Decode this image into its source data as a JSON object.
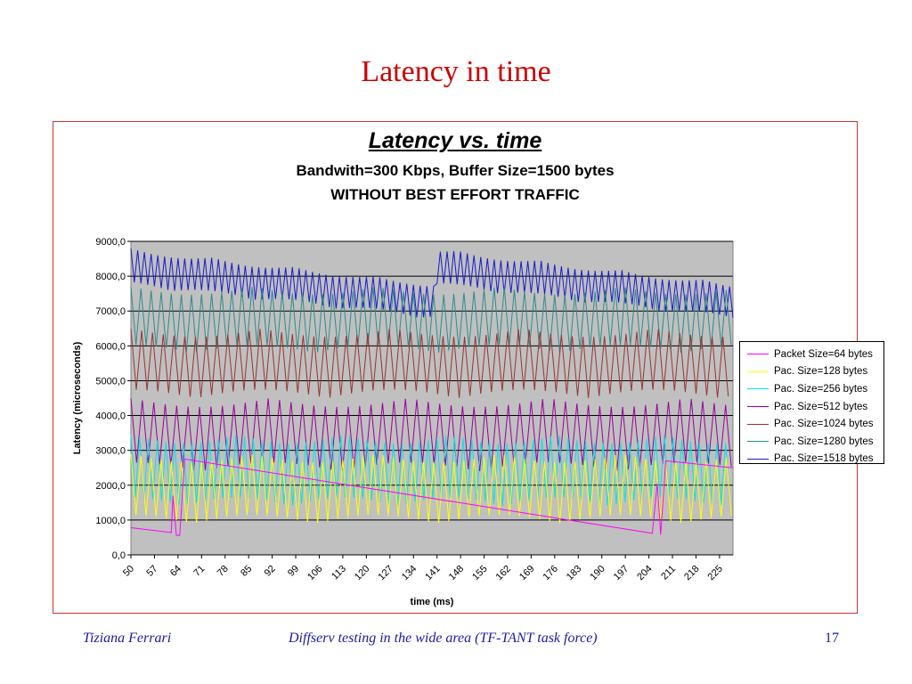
{
  "slide": {
    "title": "Latency in time",
    "footer_author": "Tiziana Ferrari",
    "footer_talk": "Diffserv testing in the wide area  (TF-TANT task force)",
    "page_number": "17"
  },
  "chart_data": {
    "type": "line",
    "title": "Latency vs. time",
    "subtitle": "Bandwith=300 Kbps, Buffer Size=1500 bytes",
    "subtitle2": "WITHOUT BEST EFFORT TRAFFIC",
    "xlabel": "time (ms)",
    "ylabel": "Latency (microseconds)",
    "xlim": [
      50,
      229
    ],
    "ylim": [
      0,
      9000
    ],
    "y_ticks": [
      "0,0",
      "1000,0",
      "2000,0",
      "3000,0",
      "4000,0",
      "5000,0",
      "6000,0",
      "7000,0",
      "8000,0",
      "9000,0"
    ],
    "x_ticks": [
      "50",
      "57",
      "64",
      "71",
      "78",
      "85",
      "92",
      "99",
      "106",
      "113",
      "120",
      "127",
      "134",
      "141",
      "148",
      "155",
      "162",
      "169",
      "176",
      "183",
      "190",
      "197",
      "204",
      "211",
      "218",
      "225"
    ],
    "grid": true,
    "plot_background": "#c0c0c0",
    "legend_position": "right",
    "series": [
      {
        "name": "Packet Size=64 bytes",
        "color": "#ff00ff",
        "points": [
          [
            50,
            780
          ],
          [
            62,
            640
          ],
          [
            62.5,
            1700
          ],
          [
            63.5,
            560
          ],
          [
            64.5,
            560
          ],
          [
            66,
            2750
          ],
          [
            205,
            620
          ],
          [
            206.5,
            2050
          ],
          [
            207.5,
            580
          ],
          [
            209,
            2700
          ],
          [
            229,
            2500
          ]
        ]
      },
      {
        "name": "Pac. Size=128 bytes",
        "color": "#ffff00",
        "pattern": {
          "min": 900,
          "max": 2900,
          "period": 3.0
        }
      },
      {
        "name": "Pac. Size=256 bytes",
        "color": "#00e5e5",
        "pattern": {
          "min": 1400,
          "max": 3450,
          "period": 2.6
        }
      },
      {
        "name": "Pac. Size=512 bytes",
        "color": "#990099",
        "pattern": {
          "min": 2400,
          "max": 4500,
          "period": 3.4
        }
      },
      {
        "name": "Pac. Size=1024 bytes",
        "color": "#993333",
        "pattern": {
          "min": 4500,
          "max": 6500,
          "period": 3.2
        }
      },
      {
        "name": "Pac. Size=1280 bytes",
        "color": "#2e8b8b",
        "pattern": {
          "min": 5800,
          "max": 7700,
          "period": 3.0
        }
      },
      {
        "name": "Pac. Size=1518 bytes",
        "color": "#1a1acc",
        "pattern": {
          "start_max": 8800,
          "start_min": 7700,
          "end_max": 7800,
          "end_min": 6750,
          "period": 2.0,
          "reset_at": 141
        }
      }
    ]
  }
}
